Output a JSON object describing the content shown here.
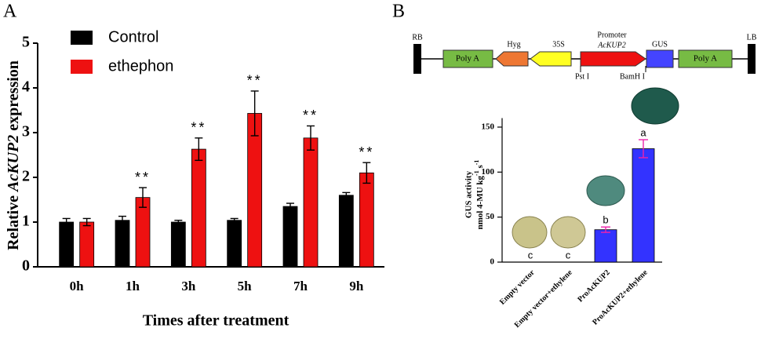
{
  "panel_labels": [
    "A",
    "B"
  ],
  "construct": {
    "rb": "RB",
    "lb": "LB",
    "poly_a_left": "Poly A",
    "hyg": "Hyg",
    "p35s": "35S",
    "promoter": [
      "Promoter",
      "AcKUP2"
    ],
    "gus": "GUS",
    "poly_a_right": "Poly A",
    "pst": "Pst I",
    "bamh": "BamH I"
  },
  "chart_data": [
    {
      "type": "bar",
      "categories": [
        "0h",
        "1h",
        "3h",
        "5h",
        "7h",
        "9h"
      ],
      "x_label": "Times after treatment",
      "y_label": [
        "Relative ",
        "AcKUP2",
        " expression"
      ],
      "ylim": [
        0,
        5
      ],
      "yticks": [
        0,
        1,
        2,
        3,
        4,
        5
      ],
      "legend": "upper left",
      "series": [
        {
          "name": "Control",
          "color": "#000000",
          "error_color": "#000000",
          "values": [
            1.0,
            1.04,
            1.0,
            1.04,
            1.35,
            1.6
          ],
          "errors": [
            0.08,
            0.09,
            0.04,
            0.04,
            0.07,
            0.06
          ]
        },
        {
          "name": "ethephon",
          "color": "#ee1111",
          "error_color": "#000000",
          "values": [
            1.0,
            1.55,
            2.63,
            3.43,
            2.88,
            2.1
          ],
          "errors": [
            0.08,
            0.22,
            0.25,
            0.5,
            0.27,
            0.23
          ],
          "annotations": [
            null,
            "**",
            "**",
            "**",
            "**",
            "**"
          ]
        }
      ]
    },
    {
      "type": "bar",
      "categories": [
        "Empty vector",
        "Empty vector+ethylene",
        "ProAcKUP2",
        "ProAcKUP2+ethylene"
      ],
      "y_label": [
        "GUS activity",
        "nmol 4-MU kg",
        "-1",
        " s",
        "-1"
      ],
      "ylim": [
        0,
        160
      ],
      "yticks": [
        0,
        50,
        100,
        150
      ],
      "series": [
        {
          "color": "#3333ff",
          "error_color": "#ee22aa",
          "values": [
            0,
            0,
            36,
            126
          ],
          "errors": [
            0,
            0,
            3,
            10
          ],
          "annotations": [
            "c",
            "c",
            "b",
            "a"
          ]
        }
      ]
    }
  ]
}
